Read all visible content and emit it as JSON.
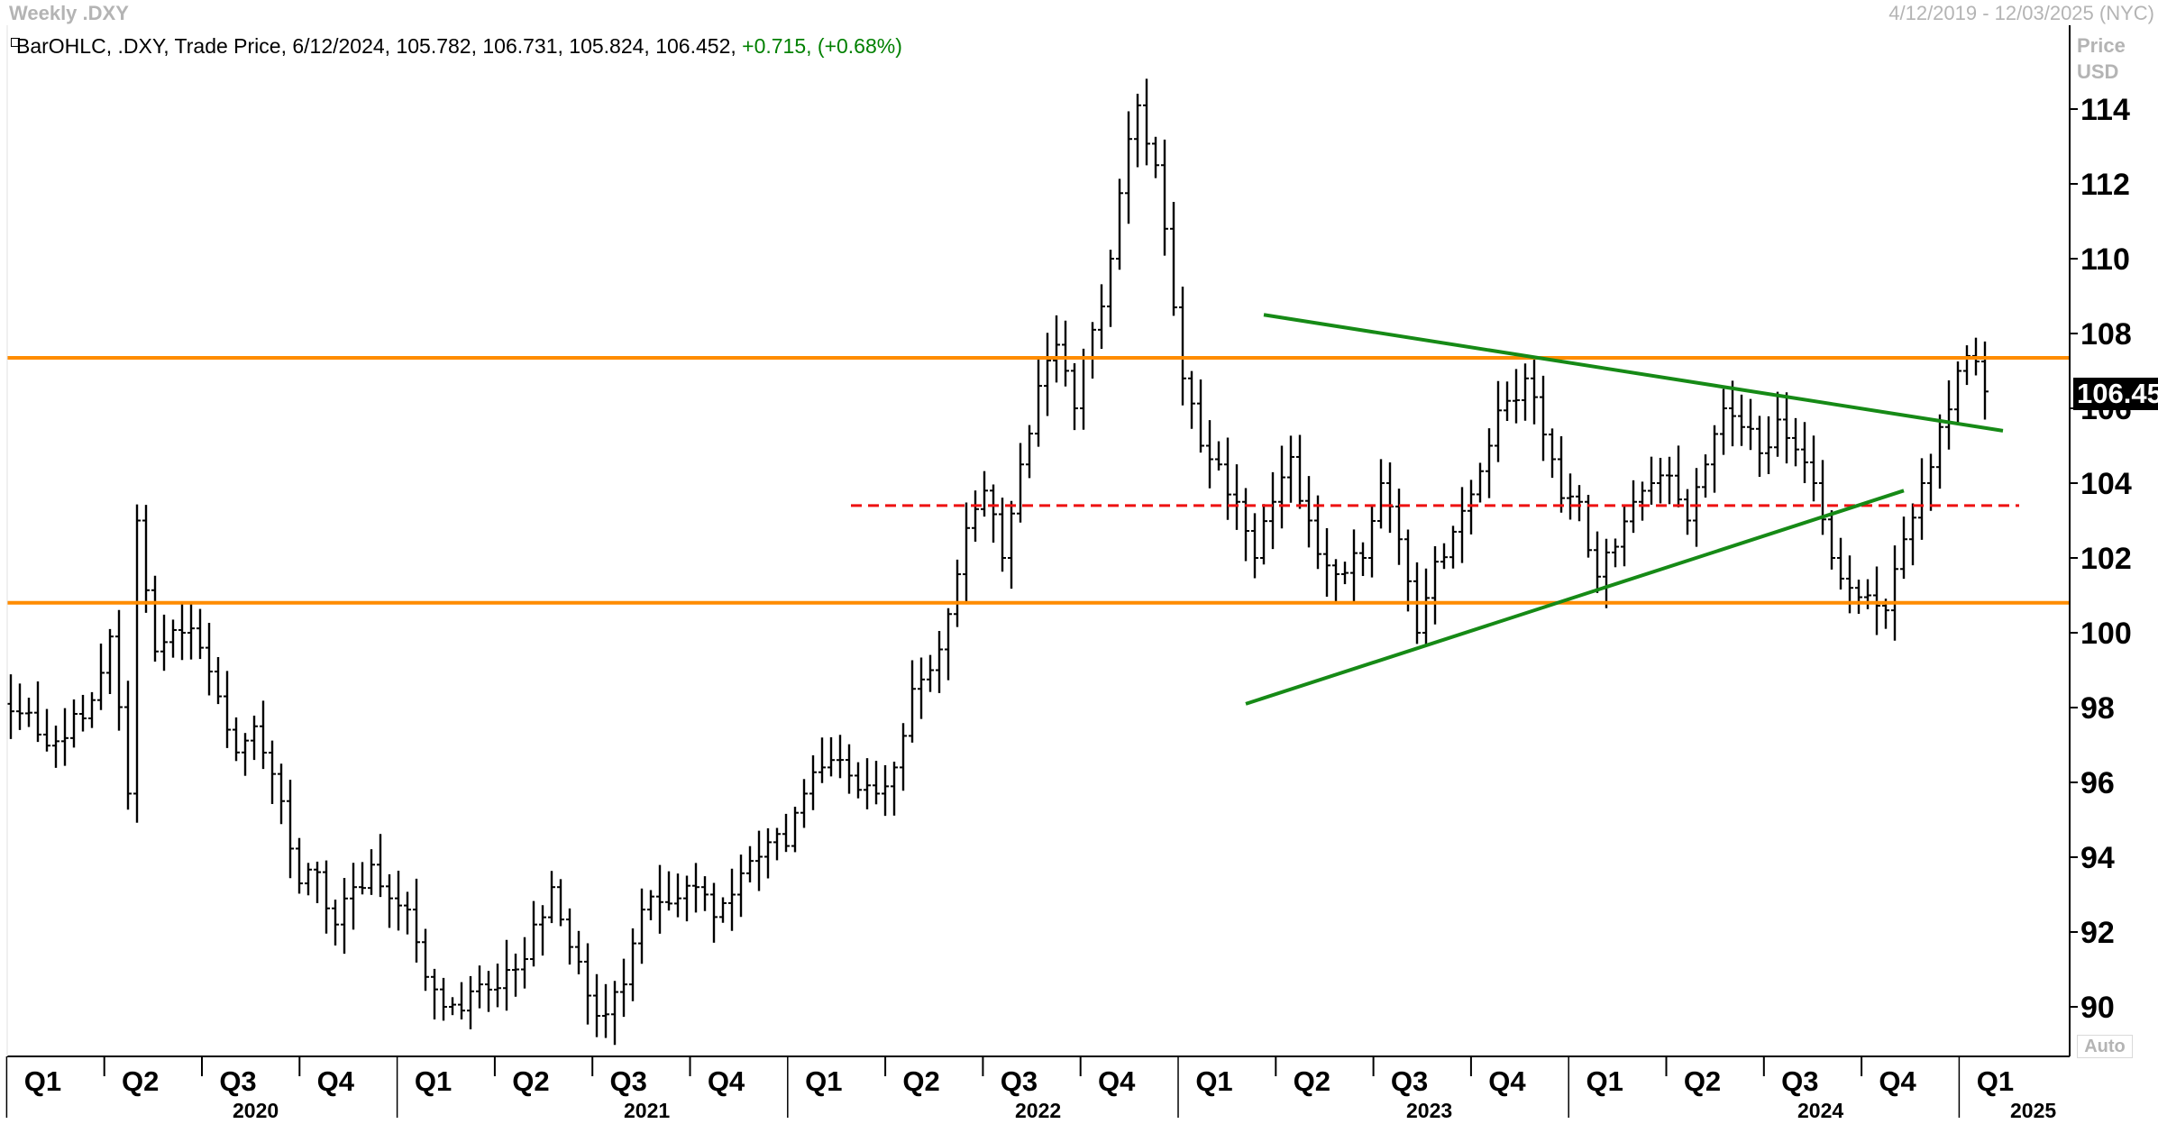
{
  "header": {
    "title": "Weekly .DXY",
    "date_range": "4/12/2019 - 12/03/2025 (NYC)"
  },
  "legend": {
    "prefix": "BarOHLC, .DXY, Trade Price, 6/12/2024, 105.782, 106.731, 105.824, 106.452,",
    "change": "+0.715, (+0.68%)"
  },
  "price_axis": {
    "unit_line1": "Price",
    "unit_line2": "USD",
    "auto_label": "Auto",
    "last_price_label": "106.452"
  },
  "colors": {
    "bars": "#000000",
    "resistance_support": "#ff8c00",
    "trendlines": "#168a16",
    "midline": "#ee1111",
    "change_text": "#008000"
  },
  "chart_data": {
    "type": "bar",
    "title": "Weekly .DXY",
    "subtitle": "BarOHLC, .DXY, Trade Price",
    "ylabel": "Price USD",
    "ylim": [
      89,
      115.5
    ],
    "y_ticks": [
      90,
      92,
      94,
      96,
      98,
      100,
      102,
      104,
      106,
      108,
      110,
      112,
      114
    ],
    "grid": false,
    "quarter_ticks": [
      "Q1",
      "Q2",
      "Q3",
      "Q4",
      "Q1",
      "Q2",
      "Q3",
      "Q4",
      "Q1",
      "Q2",
      "Q3",
      "Q4",
      "Q1",
      "Q2",
      "Q3",
      "Q4",
      "Q1",
      "Q2",
      "Q3",
      "Q4",
      "Q1"
    ],
    "year_labels": [
      "2020",
      "2021",
      "2022",
      "2023",
      "2024",
      "2025"
    ],
    "anchors_week_close": [
      [
        0,
        97.9
      ],
      [
        5,
        97.1
      ],
      [
        9,
        98.2
      ],
      [
        11,
        99.9
      ],
      [
        13,
        95.7
      ],
      [
        14,
        103.0
      ],
      [
        16,
        99.5
      ],
      [
        19,
        100.0
      ],
      [
        21,
        99.6
      ],
      [
        23,
        98.3
      ],
      [
        25,
        96.8
      ],
      [
        27,
        97.5
      ],
      [
        30,
        95.5
      ],
      [
        32,
        93.3
      ],
      [
        34,
        93.6
      ],
      [
        36,
        92.2
      ],
      [
        38,
        93.2
      ],
      [
        40,
        93.8
      ],
      [
        42,
        92.9
      ],
      [
        44,
        92.6
      ],
      [
        46,
        90.8
      ],
      [
        48,
        90.0
      ],
      [
        50,
        89.9
      ],
      [
        52,
        90.6
      ],
      [
        54,
        90.5
      ],
      [
        56,
        91.0
      ],
      [
        58,
        92.2
      ],
      [
        60,
        93.2
      ],
      [
        62,
        91.6
      ],
      [
        64,
        90.3
      ],
      [
        66,
        89.8
      ],
      [
        68,
        90.6
      ],
      [
        70,
        92.6
      ],
      [
        72,
        92.8
      ],
      [
        74,
        92.9
      ],
      [
        76,
        93.2
      ],
      [
        78,
        92.4
      ],
      [
        80,
        93.0
      ],
      [
        82,
        93.9
      ],
      [
        84,
        94.4
      ],
      [
        86,
        94.3
      ],
      [
        88,
        95.7
      ],
      [
        90,
        96.4
      ],
      [
        92,
        96.6
      ],
      [
        94,
        95.8
      ],
      [
        96,
        95.7
      ],
      [
        98,
        96.4
      ],
      [
        100,
        98.5
      ],
      [
        102,
        99.0
      ],
      [
        104,
        100.5
      ],
      [
        106,
        102.8
      ],
      [
        108,
        103.8
      ],
      [
        110,
        102.0
      ],
      [
        112,
        104.5
      ],
      [
        114,
        106.6
      ],
      [
        116,
        107.7
      ],
      [
        118,
        106.0
      ],
      [
        120,
        108.1
      ],
      [
        122,
        110.0
      ],
      [
        124,
        113.2
      ],
      [
        125,
        114.1
      ],
      [
        127,
        112.5
      ],
      [
        128,
        110.8
      ],
      [
        130,
        106.8
      ],
      [
        132,
        105.0
      ],
      [
        134,
        104.5
      ],
      [
        136,
        103.5
      ],
      [
        138,
        102.0
      ],
      [
        140,
        103.5
      ],
      [
        142,
        104.7
      ],
      [
        144,
        103.0
      ],
      [
        146,
        101.8
      ],
      [
        148,
        101.6
      ],
      [
        150,
        102.0
      ],
      [
        152,
        104.0
      ],
      [
        154,
        102.5
      ],
      [
        156,
        100.0
      ],
      [
        158,
        101.9
      ],
      [
        160,
        102.7
      ],
      [
        162,
        103.7
      ],
      [
        164,
        105.0
      ],
      [
        166,
        106.2
      ],
      [
        168,
        106.8
      ],
      [
        170,
        105.3
      ],
      [
        172,
        103.6
      ],
      [
        174,
        103.5
      ],
      [
        176,
        101.5
      ],
      [
        178,
        102.3
      ],
      [
        180,
        103.5
      ],
      [
        182,
        104.0
      ],
      [
        184,
        104.2
      ],
      [
        186,
        103.0
      ],
      [
        188,
        104.5
      ],
      [
        190,
        106.0
      ],
      [
        192,
        105.5
      ],
      [
        194,
        104.8
      ],
      [
        196,
        105.7
      ],
      [
        198,
        104.9
      ],
      [
        200,
        104.0
      ],
      [
        202,
        102.0
      ],
      [
        204,
        101.2
      ],
      [
        206,
        101.0
      ],
      [
        208,
        100.6
      ],
      [
        210,
        102.5
      ],
      [
        212,
        104.0
      ],
      [
        214,
        105.5
      ],
      [
        216,
        107.0
      ],
      [
        217,
        107.4
      ],
      [
        219,
        106.45
      ]
    ],
    "horizontal_levels": [
      {
        "value": 107.35,
        "style": "solid",
        "color": "#ff8c00"
      },
      {
        "value": 100.8,
        "style": "solid",
        "color": "#ff8c00"
      },
      {
        "value": 103.4,
        "style": "dashed",
        "color": "#ee1111"
      }
    ],
    "trendlines": [
      {
        "from": [
          139,
          108.5
        ],
        "to": [
          221,
          105.4
        ],
        "color": "#168a16"
      },
      {
        "from": [
          137,
          98.1
        ],
        "to": [
          210,
          103.8
        ],
        "color": "#168a16"
      }
    ]
  }
}
